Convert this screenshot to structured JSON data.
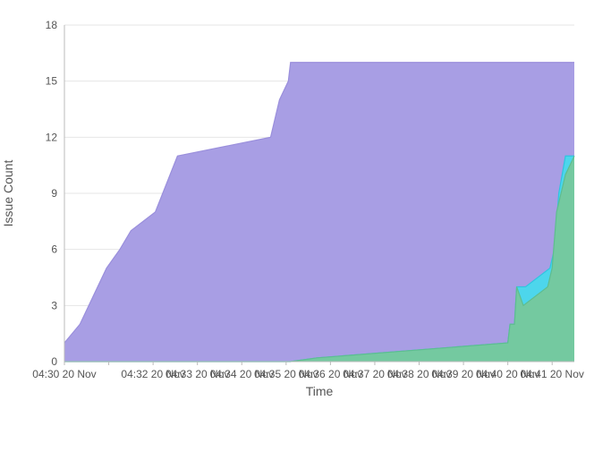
{
  "chart_data": {
    "type": "area",
    "stacked": true,
    "xlabel": "Time",
    "ylabel": "Issue Count",
    "ylim": [
      0,
      18
    ],
    "yticks": [
      0,
      3,
      6,
      9,
      12,
      15,
      18
    ],
    "x_minutes_range": [
      30,
      41.5
    ],
    "xticks": [
      {
        "at": 30,
        "label": "04:30 20 Nov"
      },
      {
        "at": 31,
        "label": ""
      },
      {
        "at": 32,
        "label": "04:32 20 Nov"
      },
      {
        "at": 33,
        "label": "04:33 20 Nov"
      },
      {
        "at": 34,
        "label": "04:34 20 Nov"
      },
      {
        "at": 35,
        "label": "04:35 20 Nov"
      },
      {
        "at": 36,
        "label": "04:36 20 Nov"
      },
      {
        "at": 37,
        "label": "04:37 20 Nov"
      },
      {
        "at": 38,
        "label": "04:38 20 Nov"
      },
      {
        "at": 39,
        "label": "04:39 20 Nov"
      },
      {
        "at": 40,
        "label": "04:40 20 Nov"
      },
      {
        "at": 41,
        "label": "04:41 20 Nov"
      }
    ],
    "grid": true,
    "series": [
      {
        "color": "#a89ee4",
        "stroke": "#9a8fdc",
        "values": [
          [
            30.0,
            1
          ],
          [
            30.35,
            2
          ],
          [
            30.75,
            4
          ],
          [
            30.95,
            5
          ],
          [
            31.25,
            6
          ],
          [
            31.5,
            7
          ],
          [
            32.05,
            8
          ],
          [
            32.55,
            11
          ],
          [
            34.65,
            12
          ],
          [
            34.85,
            14
          ],
          [
            35.05,
            15
          ],
          [
            35.1,
            16
          ],
          [
            41.5,
            16
          ]
        ]
      },
      {
        "color": "#4dd6ec",
        "stroke": "#2ec5e0",
        "values": [
          [
            30.0,
            0
          ],
          [
            35.1,
            0
          ],
          [
            35.7,
            0.2
          ],
          [
            40.0,
            1
          ],
          [
            40.05,
            2
          ],
          [
            40.15,
            2
          ],
          [
            40.2,
            4
          ],
          [
            40.35,
            4
          ],
          [
            40.4,
            4
          ],
          [
            40.95,
            5
          ],
          [
            41.05,
            6
          ],
          [
            41.15,
            9
          ],
          [
            41.3,
            11
          ],
          [
            41.5,
            11
          ]
        ]
      },
      {
        "color": "#74c9a0",
        "stroke": "#5ebd8f",
        "values": [
          [
            30.0,
            0
          ],
          [
            35.1,
            0
          ],
          [
            35.7,
            0.2
          ],
          [
            40.0,
            1
          ],
          [
            40.05,
            2
          ],
          [
            40.15,
            2
          ],
          [
            40.2,
            4
          ],
          [
            40.35,
            3
          ],
          [
            40.9,
            4
          ],
          [
            41.0,
            5
          ],
          [
            41.1,
            8
          ],
          [
            41.3,
            10
          ],
          [
            41.5,
            11
          ]
        ]
      }
    ]
  }
}
